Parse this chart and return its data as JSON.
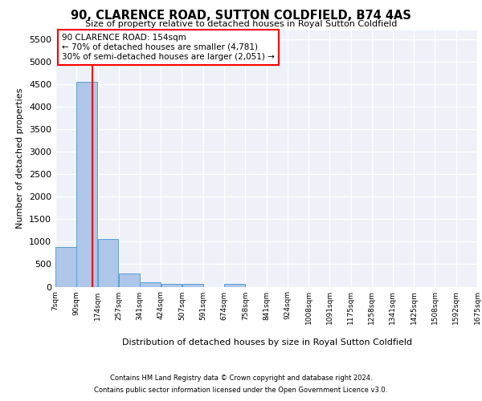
{
  "title1": "90, CLARENCE ROAD, SUTTON COLDFIELD, B74 4AS",
  "title2": "Size of property relative to detached houses in Royal Sutton Coldfield",
  "xlabel": "Distribution of detached houses by size in Royal Sutton Coldfield",
  "ylabel": "Number of detached properties",
  "bin_edges": [
    7,
    90,
    174,
    257,
    341,
    424,
    507,
    591,
    674,
    758,
    841,
    924,
    1008,
    1091,
    1175,
    1258,
    1341,
    1425,
    1508,
    1592,
    1675
  ],
  "bar_heights": [
    880,
    4560,
    1060,
    290,
    90,
    70,
    60,
    0,
    55,
    0,
    0,
    0,
    0,
    0,
    0,
    0,
    0,
    0,
    0,
    0
  ],
  "bar_color": "#aec6e8",
  "bar_edge_color": "#5a9fd4",
  "red_line_x": 154,
  "annotation_title": "90 CLARENCE ROAD: 154sqm",
  "annotation_line1": "← 70% of detached houses are smaller (4,781)",
  "annotation_line2": "30% of semi-detached houses are larger (2,051) →",
  "ylim_max": 5700,
  "yticks": [
    0,
    500,
    1000,
    1500,
    2000,
    2500,
    3000,
    3500,
    4000,
    4500,
    5000,
    5500
  ],
  "bg_color": "#eef2f8",
  "footer1": "Contains HM Land Registry data © Crown copyright and database right 2024.",
  "footer2": "Contains public sector information licensed under the Open Government Licence v3.0."
}
